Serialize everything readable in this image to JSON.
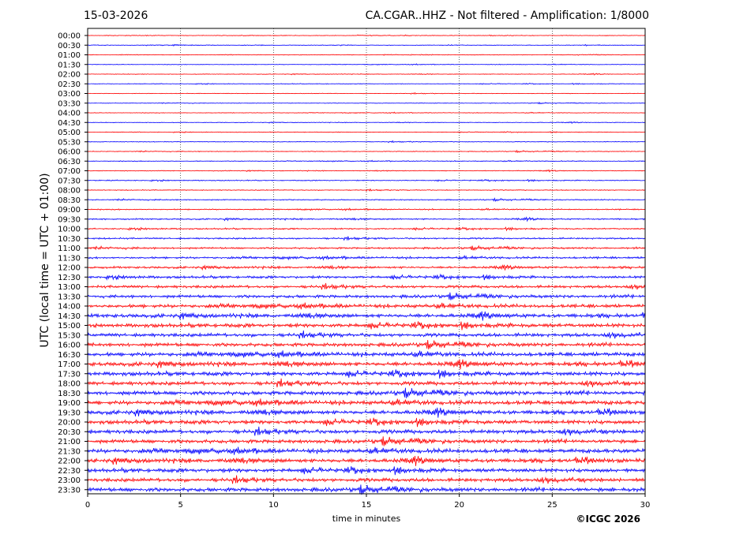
{
  "header": {
    "date": "15-03-2026",
    "title": "CA.CGAR..HHZ - Not filtered - Amplification: 1/8000"
  },
  "footer": {
    "copyright": "©ICGC 2026"
  },
  "chart_data": {
    "type": "line",
    "title": "CA.CGAR..HHZ - Not filtered - Amplification: 1/8000",
    "xlabel": "time in minutes",
    "ylabel": "UTC (local time = UTC + 01:00)",
    "xlim": [
      0,
      30
    ],
    "xticks": [
      0,
      5,
      10,
      15,
      20,
      25,
      30
    ],
    "grid": "vertical dotted lines at x ticks",
    "colors": [
      "#ff0000",
      "#0000ff"
    ],
    "rows": [
      "00:00",
      "00:30",
      "01:00",
      "01:30",
      "02:00",
      "02:30",
      "03:00",
      "03:30",
      "04:00",
      "04:30",
      "05:00",
      "05:30",
      "06:00",
      "06:30",
      "07:00",
      "07:30",
      "08:00",
      "08:30",
      "09:00",
      "09:30",
      "10:00",
      "10:30",
      "11:00",
      "11:30",
      "12:00",
      "12:30",
      "13:00",
      "13:30",
      "14:00",
      "14:30",
      "15:00",
      "15:30",
      "16:00",
      "16:30",
      "17:00",
      "17:30",
      "18:00",
      "18:30",
      "19:00",
      "19:30",
      "20:00",
      "20:30",
      "21:00",
      "21:30",
      "22:00",
      "22:30",
      "23:00",
      "23:30"
    ],
    "row_amplitude": [
      0.2,
      0.2,
      0.2,
      0.2,
      0.2,
      0.2,
      0.2,
      0.2,
      0.2,
      0.2,
      0.2,
      0.25,
      0.25,
      0.25,
      0.25,
      0.3,
      0.3,
      0.35,
      0.35,
      0.45,
      0.45,
      0.55,
      0.6,
      0.65,
      0.7,
      0.8,
      0.95,
      1.0,
      1.1,
      1.2,
      1.25,
      1.2,
      1.2,
      1.25,
      1.3,
      1.3,
      1.3,
      1.35,
      1.3,
      1.3,
      1.3,
      1.35,
      1.25,
      1.3,
      1.3,
      1.25,
      1.25,
      1.3
    ]
  }
}
